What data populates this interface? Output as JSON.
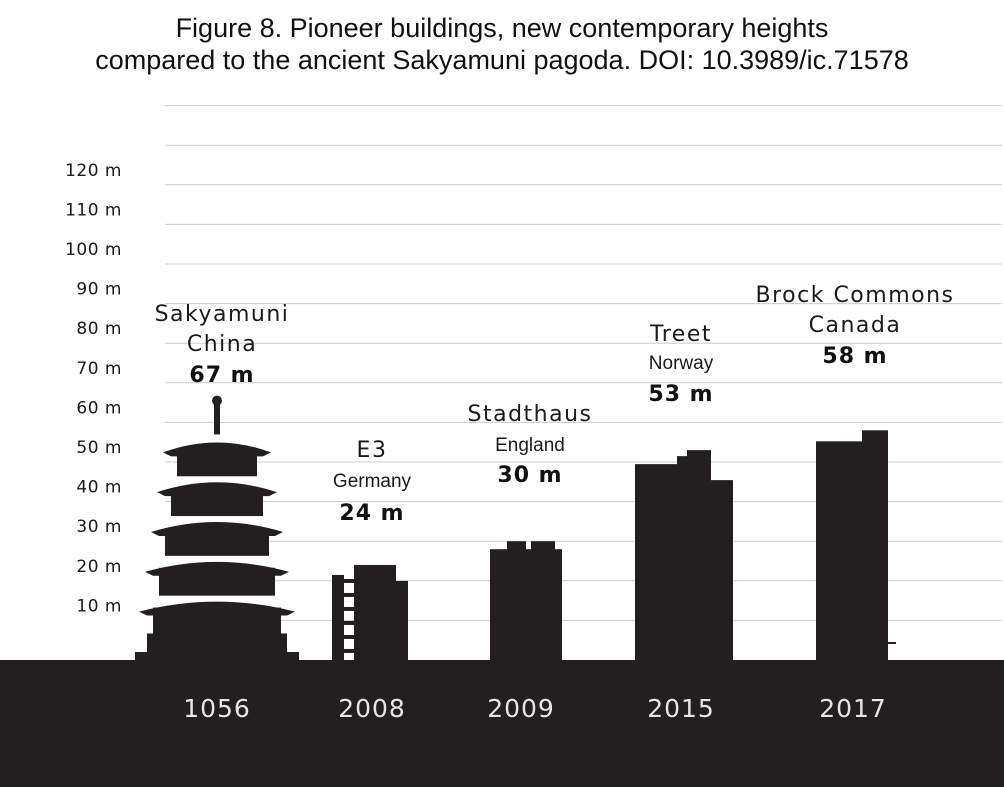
{
  "title": {
    "line1": "Figure 8. Pioneer buildings, new contemporary heights",
    "line2": "compared to the ancient Sakyamuni pagoda. DOI: 10.3989/ic.71578"
  },
  "chart_data": {
    "type": "bar",
    "title": "Figure 8. Pioneer buildings, new contemporary heights compared to the ancient Sakyamuni pagoda. DOI: 10.3989/ic.71578",
    "categories": [
      "1056",
      "2008",
      "2009",
      "2015",
      "2017"
    ],
    "buildings": [
      {
        "name": "Sakyamuni",
        "country": "China",
        "height_label": "67 m",
        "height": 67,
        "year": "1056"
      },
      {
        "name": "E3",
        "country": "Germany",
        "height_label": "24 m",
        "height": 24,
        "year": "2008"
      },
      {
        "name": "Stadthaus",
        "country": "England",
        "height_label": "30 m",
        "height": 30,
        "year": "2009"
      },
      {
        "name": "Treet",
        "country": "Norway",
        "height_label": "53 m",
        "height": 53,
        "year": "2015"
      },
      {
        "name": "Brock Commons",
        "country": "Canada",
        "height_label": "58 m",
        "height": 58,
        "year": "2017"
      }
    ],
    "values": [
      67,
      24,
      30,
      53,
      58
    ],
    "ylabel": "",
    "yticks": [
      "10 m",
      "20 m",
      "30 m",
      "40 m",
      "50 m",
      "60 m",
      "70 m",
      "80 m",
      "90 m",
      "100 m",
      "110 m",
      "120 m"
    ],
    "ylim": [
      0,
      140
    ],
    "grid": true,
    "colors": {
      "silhouette": "#231f20",
      "ground": "#231f20",
      "grid": "#cccccc",
      "year_text": "#e6e6e6"
    }
  }
}
